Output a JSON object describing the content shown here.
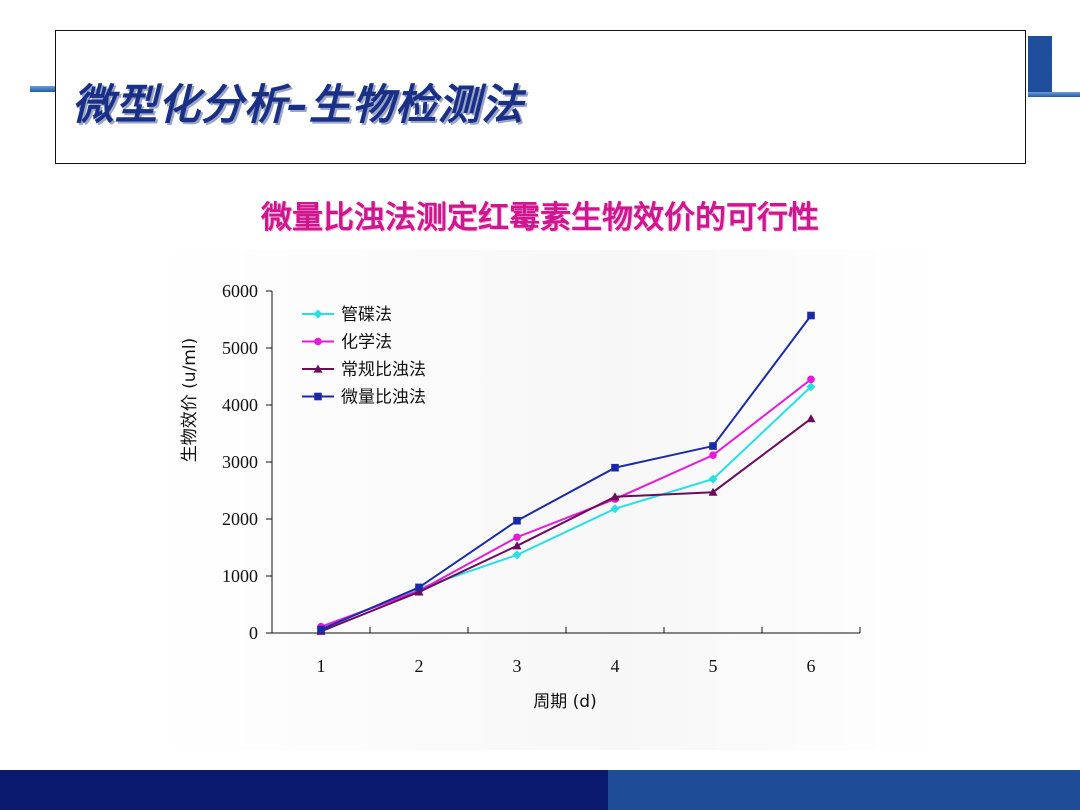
{
  "slide": {
    "title": "微型化分析–生物检测法"
  },
  "colors": {
    "title": "#1a2f86",
    "chart_title": "#d0168e",
    "footer_dark": "#0b1a6e",
    "footer_light": "#1e4c96"
  },
  "chart_data": {
    "type": "line",
    "title": "微量比浊法测定红霉素生物效价的可行性",
    "xlabel": "周期 (d)",
    "ylabel": "生物效价 (u/ml)",
    "categories": [
      "1",
      "2",
      "3",
      "4",
      "5",
      "6"
    ],
    "ylim": [
      0,
      6000
    ],
    "yticks": [
      0,
      1000,
      2000,
      3000,
      4000,
      5000,
      6000
    ],
    "legend_position": "top-left",
    "grid": false,
    "series": [
      {
        "name": "管碟法",
        "color": "#27e0e6",
        "marker": "diamond",
        "values": [
          80,
          780,
          1370,
          2180,
          2700,
          4320
        ]
      },
      {
        "name": "化学法",
        "color": "#e81ad9",
        "marker": "circle",
        "values": [
          110,
          740,
          1680,
          2350,
          3120,
          4450
        ]
      },
      {
        "name": "常规比浊法",
        "color": "#6b0d5c",
        "marker": "triangle",
        "values": [
          30,
          720,
          1530,
          2390,
          2470,
          3760
        ]
      },
      {
        "name": "微量比浊法",
        "color": "#1a2aa8",
        "marker": "square",
        "values": [
          60,
          800,
          1970,
          2900,
          3280,
          5570
        ]
      }
    ]
  }
}
